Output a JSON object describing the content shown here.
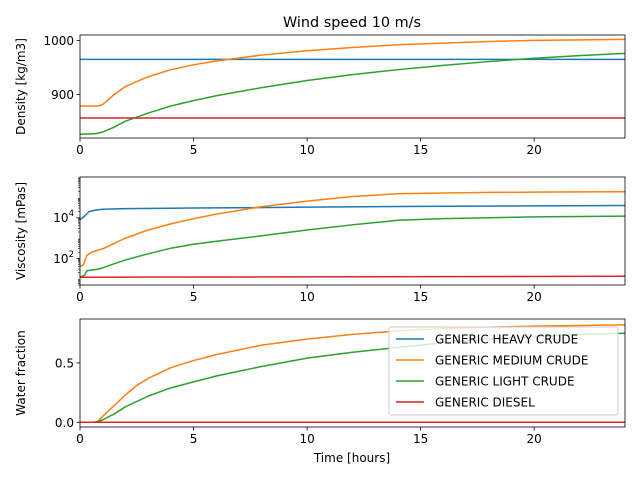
{
  "figure": {
    "title": "Wind speed 10 m/s",
    "xlabel": "Time [hours]"
  },
  "legend": {
    "placement": "lower-right of bottom panel",
    "entries": [
      {
        "name": "GENERIC HEAVY CRUDE",
        "color": "#1f77b4"
      },
      {
        "name": "GENERIC MEDIUM CRUDE",
        "color": "#ff7f0e"
      },
      {
        "name": "GENERIC LIGHT CRUDE",
        "color": "#2ca02c"
      },
      {
        "name": "GENERIC DIESEL",
        "color": "#d62728"
      }
    ]
  },
  "chart_data": [
    {
      "type": "line",
      "title": "Wind speed 10 m/s",
      "xlabel": "",
      "ylabel": "Density [kg/m3]",
      "xlim": [
        0,
        24
      ],
      "ylim": [
        820,
        1010
      ],
      "yscale": "linear",
      "xticks": [
        {
          "v": 0,
          "label": "0"
        },
        {
          "v": 5,
          "label": "5"
        },
        {
          "v": 10,
          "label": "10"
        },
        {
          "v": 15,
          "label": "15"
        },
        {
          "v": 20,
          "label": "20"
        }
      ],
      "yticks": [
        {
          "v": 900,
          "label": "900"
        },
        {
          "v": 1000,
          "label": "1000"
        }
      ],
      "grid": false,
      "series": [
        {
          "name": "GENERIC HEAVY CRUDE",
          "color": "#1f77b4",
          "x": [
            0,
            24
          ],
          "y": [
            965,
            965
          ]
        },
        {
          "name": "GENERIC MEDIUM CRUDE",
          "color": "#ff7f0e",
          "x": [
            0,
            0.8,
            1,
            1.5,
            2,
            3,
            4,
            5,
            6,
            8,
            10,
            12,
            14,
            16,
            18,
            20,
            22,
            24
          ],
          "y": [
            879,
            879,
            882,
            900,
            915,
            933,
            946,
            955,
            962,
            973,
            981,
            987,
            992,
            995,
            998,
            1000,
            1001,
            1002
          ]
        },
        {
          "name": "GENERIC LIGHT CRUDE",
          "color": "#2ca02c",
          "x": [
            0,
            0.7,
            1,
            1.5,
            2,
            3,
            4,
            5,
            6,
            8,
            10,
            12,
            14,
            16,
            18,
            20,
            22,
            24
          ],
          "y": [
            827,
            828,
            831,
            840,
            851,
            866,
            879,
            889,
            898,
            913,
            926,
            937,
            946,
            954,
            961,
            967,
            972,
            976
          ]
        },
        {
          "name": "GENERIC DIESEL",
          "color": "#d62728",
          "x": [
            0,
            24
          ],
          "y": [
            857,
            857
          ]
        }
      ]
    },
    {
      "type": "line",
      "xlabel": "",
      "ylabel": "Viscosity [mPas]",
      "xlim": [
        0,
        24
      ],
      "ylim": [
        5,
        1000000
      ],
      "yscale": "log",
      "xticks": [
        {
          "v": 0,
          "label": "0"
        },
        {
          "v": 5,
          "label": "5"
        },
        {
          "v": 10,
          "label": "10"
        },
        {
          "v": 15,
          "label": "15"
        },
        {
          "v": 20,
          "label": "20"
        }
      ],
      "yticks": [
        {
          "v": 100,
          "label": "10",
          "sup": "2"
        },
        {
          "v": 10000,
          "label": "10",
          "sup": "4"
        }
      ],
      "grid": false,
      "series": [
        {
          "name": "GENERIC HEAVY CRUDE",
          "color": "#1f77b4",
          "x": [
            0,
            0.2,
            0.4,
            0.7,
            1,
            2,
            5,
            10,
            15,
            20,
            24
          ],
          "y": [
            8000,
            12000,
            20000,
            24000,
            26000,
            28000,
            30000,
            33000,
            36000,
            38000,
            40000
          ]
        },
        {
          "name": "GENERIC MEDIUM CRUDE",
          "color": "#ff7f0e",
          "x": [
            0,
            0.15,
            0.3,
            0.5,
            0.8,
            1,
            1.5,
            2,
            3,
            4,
            5,
            6,
            8,
            10,
            12,
            14,
            16,
            18,
            20,
            22,
            24
          ],
          "y": [
            40,
            50,
            140,
            200,
            260,
            300,
            550,
            1000,
            2500,
            5000,
            9000,
            15000,
            35000,
            65000,
            110000,
            150000,
            165000,
            175000,
            180000,
            185000,
            190000
          ]
        },
        {
          "name": "GENERIC LIGHT CRUDE",
          "color": "#2ca02c",
          "x": [
            0,
            0.2,
            0.3,
            0.8,
            1,
            1.5,
            2,
            3,
            4,
            5,
            6,
            8,
            10,
            12,
            14,
            16,
            18,
            20,
            22,
            24
          ],
          "y": [
            12,
            15,
            25,
            30,
            35,
            55,
            85,
            170,
            320,
            500,
            700,
            1300,
            2500,
            4500,
            7500,
            9000,
            10000,
            11000,
            11500,
            12000
          ]
        },
        {
          "name": "GENERIC DIESEL",
          "color": "#d62728",
          "x": [
            0,
            10,
            24
          ],
          "y": [
            12,
            12.5,
            13.5
          ]
        }
      ]
    },
    {
      "type": "line",
      "xlabel": "Time [hours]",
      "ylabel": "Water fraction",
      "xlim": [
        0,
        24
      ],
      "ylim": [
        -0.04,
        0.87
      ],
      "yscale": "linear",
      "xticks": [
        {
          "v": 0,
          "label": "0"
        },
        {
          "v": 5,
          "label": "5"
        },
        {
          "v": 10,
          "label": "10"
        },
        {
          "v": 15,
          "label": "15"
        },
        {
          "v": 20,
          "label": "20"
        }
      ],
      "yticks": [
        {
          "v": 0,
          "label": "0.0"
        },
        {
          "v": 0.5,
          "label": "0.5"
        }
      ],
      "grid": false,
      "series": [
        {
          "name": "GENERIC HEAVY CRUDE",
          "color": "#1f77b4",
          "x": [
            0,
            24
          ],
          "y": [
            0,
            0
          ]
        },
        {
          "name": "GENERIC MEDIUM CRUDE",
          "color": "#ff7f0e",
          "x": [
            0,
            0.6,
            0.8,
            1,
            1.5,
            2,
            2.5,
            3,
            4,
            5,
            6,
            8,
            10,
            12,
            14,
            16,
            18,
            20,
            22,
            24
          ],
          "y": [
            0,
            0,
            0.01,
            0.05,
            0.14,
            0.23,
            0.31,
            0.37,
            0.46,
            0.52,
            0.57,
            0.65,
            0.7,
            0.74,
            0.77,
            0.79,
            0.8,
            0.81,
            0.815,
            0.82
          ]
        },
        {
          "name": "GENERIC LIGHT CRUDE",
          "color": "#2ca02c",
          "x": [
            0,
            0.7,
            1,
            1.5,
            2,
            3,
            4,
            5,
            6,
            8,
            10,
            12,
            14,
            16,
            18,
            20,
            22,
            24
          ],
          "y": [
            0,
            0,
            0.02,
            0.07,
            0.13,
            0.22,
            0.29,
            0.34,
            0.39,
            0.47,
            0.54,
            0.59,
            0.63,
            0.67,
            0.7,
            0.72,
            0.74,
            0.75
          ]
        },
        {
          "name": "GENERIC DIESEL",
          "color": "#d62728",
          "x": [
            0,
            24
          ],
          "y": [
            0,
            0
          ]
        }
      ]
    }
  ]
}
